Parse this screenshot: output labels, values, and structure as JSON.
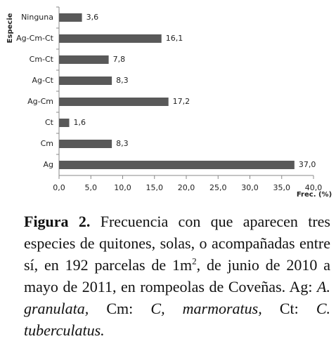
{
  "chart_data": {
    "type": "hbar",
    "y_label": "Especie",
    "x_label": "Frec. (%)",
    "categories": [
      "Ninguna",
      "Ag-Cm-Ct",
      "Cm-Ct",
      "Ag-Ct",
      "Ag-Cm",
      "Ct",
      "Cm",
      "Ag"
    ],
    "values": [
      3.6,
      16.1,
      7.8,
      8.3,
      17.2,
      1.6,
      8.3,
      37.0
    ],
    "value_labels": [
      "3,6",
      "16,1",
      "7,8",
      "8,3",
      "17,2",
      "1,6",
      "8,3",
      "37,0"
    ],
    "color": "#595959",
    "xlim": [
      0,
      40
    ],
    "xticks": [
      {
        "value": 0,
        "label": "0,0"
      },
      {
        "value": 5,
        "label": "5,0"
      },
      {
        "value": 10,
        "label": "10,0"
      },
      {
        "value": 15,
        "label": "15,0"
      },
      {
        "value": 20,
        "label": "20,0"
      },
      {
        "value": 25,
        "label": "25,0"
      },
      {
        "value": 30,
        "label": "30,0"
      },
      {
        "value": 35,
        "label": "35,0"
      },
      {
        "value": 40,
        "label": "40,0"
      }
    ],
    "grid": false
  },
  "caption": {
    "label": "Figura 2.",
    "segments": [
      " Frecuencia con que aparecen tres especies de quitones, solas, o acompañadas entre sí, en 192 parcelas de 1m",
      "2",
      ", de junio de 2010 a mayo de 2011, en rompeolas de Coveñas. Ag: ",
      "A. granulata,",
      " Cm: ",
      "C, marmoratus,",
      " Ct: ",
      "C. tuberculatus."
    ]
  }
}
